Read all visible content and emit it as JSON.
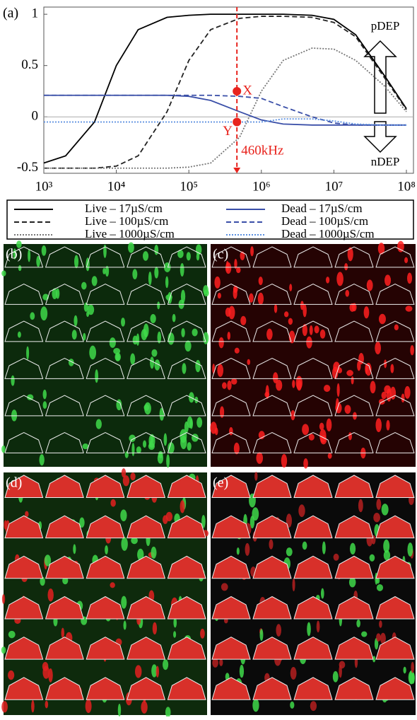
{
  "chart_data": {
    "type": "line",
    "panel_label": "(a)",
    "x": [
      1000,
      2000,
      5000,
      10000,
      20000,
      50000,
      100000,
      200000,
      500000,
      1000000,
      2000000,
      5000000,
      10000000,
      20000000,
      50000000,
      100000000
    ],
    "xscale": "log",
    "xlim": [
      1000,
      100000000
    ],
    "xticks": [
      {
        "value": 1000,
        "label": "10³"
      },
      {
        "value": 10000,
        "label": "10⁴"
      },
      {
        "value": 100000,
        "label": "10⁵"
      },
      {
        "value": 1000000,
        "label": "10⁶"
      },
      {
        "value": 10000000,
        "label": "10⁷"
      },
      {
        "value": 100000000,
        "label": "10⁸"
      }
    ],
    "ylim": [
      -0.55,
      1.07
    ],
    "yticks": [
      -0.5,
      0,
      0.5,
      1
    ],
    "series": [
      {
        "name": "Live – 17µS/cm",
        "color": "#000000",
        "dash": "solid",
        "values": [
          -0.45,
          -0.38,
          -0.05,
          0.5,
          0.85,
          0.97,
          0.99,
          1.0,
          1.0,
          1.0,
          1.0,
          0.99,
          0.95,
          0.8,
          0.4,
          0.08
        ]
      },
      {
        "name": "Live – 100µS/cm",
        "color": "#222222",
        "dash": "dashed",
        "values": [
          -0.5,
          -0.5,
          -0.5,
          -0.48,
          -0.38,
          0.05,
          0.55,
          0.85,
          0.96,
          0.98,
          0.98,
          0.97,
          0.92,
          0.78,
          0.38,
          0.07
        ]
      },
      {
        "name": "Live – 1000µS/cm",
        "color": "#777777",
        "dash": "dotted",
        "values": [
          -0.5,
          -0.5,
          -0.5,
          -0.5,
          -0.5,
          -0.5,
          -0.49,
          -0.45,
          -0.2,
          0.25,
          0.55,
          0.67,
          0.66,
          0.55,
          0.3,
          0.05
        ]
      },
      {
        "name": "Dead – 17µS/cm",
        "color": "#3a4fa8",
        "dash": "solid",
        "values": [
          0.21,
          0.21,
          0.21,
          0.21,
          0.21,
          0.21,
          0.2,
          0.16,
          0.05,
          -0.03,
          -0.07,
          -0.08,
          -0.08,
          -0.08,
          -0.08,
          -0.08
        ]
      },
      {
        "name": "Dead – 100µS/cm",
        "color": "#3a4fa8",
        "dash": "dashed",
        "values": [
          0.21,
          0.21,
          0.21,
          0.21,
          0.21,
          0.21,
          0.21,
          0.21,
          0.2,
          0.18,
          0.1,
          0.0,
          -0.06,
          -0.08,
          -0.08,
          -0.08
        ]
      },
      {
        "name": "Dead – 1000µS/cm",
        "color": "#5a8fe0",
        "dash": "dotted",
        "values": [
          -0.05,
          -0.05,
          -0.05,
          -0.05,
          -0.05,
          -0.05,
          -0.05,
          -0.05,
          -0.05,
          -0.05,
          -0.02,
          -0.02,
          -0.04,
          -0.07,
          -0.08,
          -0.08
        ]
      }
    ],
    "vline": {
      "x": 460000,
      "label": "460kHz",
      "color": "#e8231d"
    },
    "markers": [
      {
        "label": "X",
        "x": 460000,
        "y": 0.25
      },
      {
        "label": "Y",
        "x": 460000,
        "y": -0.05
      }
    ],
    "arrow_labels": [
      "pDEP",
      "nDEP"
    ]
  },
  "panels": [
    {
      "label": "(b)"
    },
    {
      "label": "(c)"
    },
    {
      "label": "(d)"
    },
    {
      "label": "(e)"
    }
  ]
}
